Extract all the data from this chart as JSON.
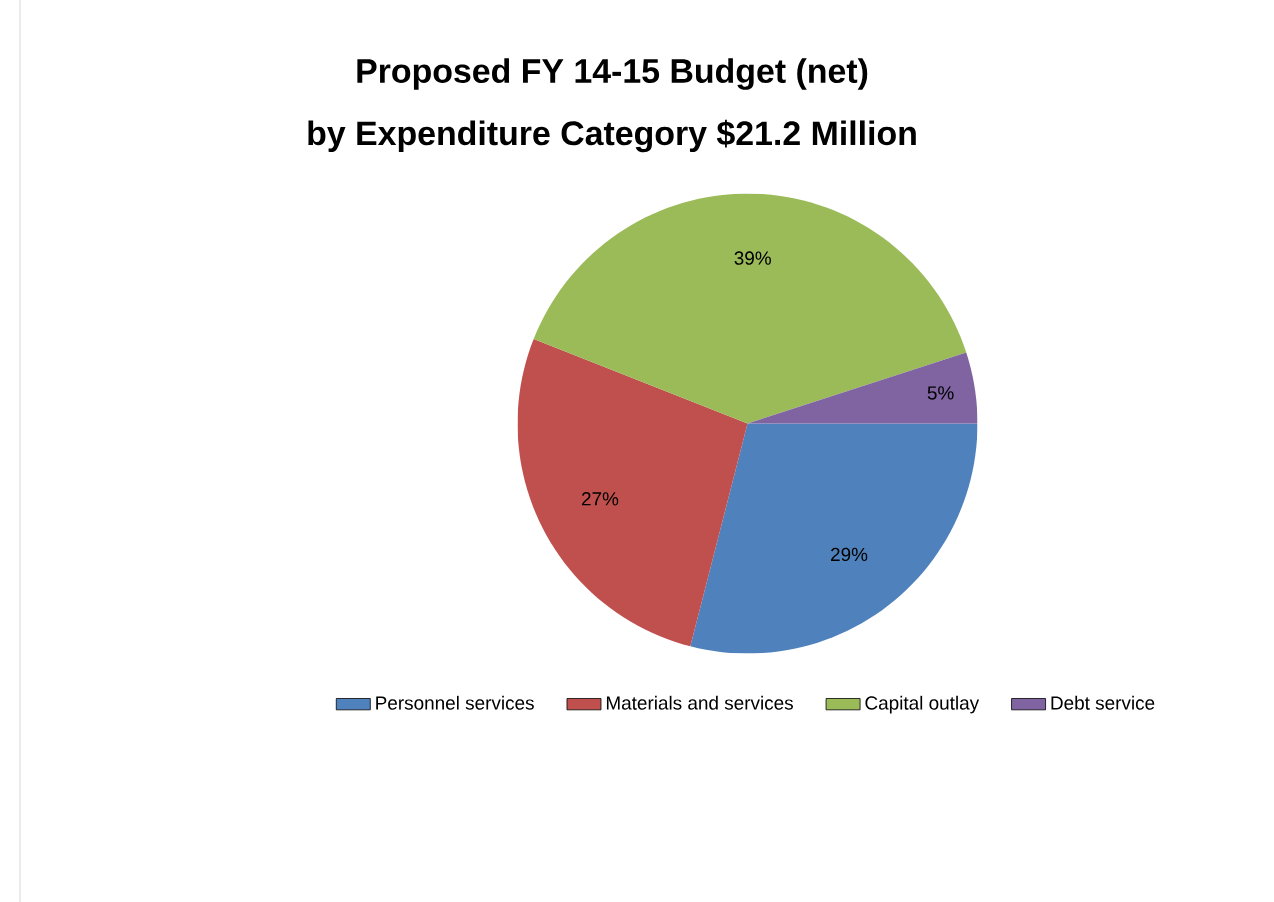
{
  "chart_data": {
    "type": "pie",
    "title": "Proposed FY 14-15 Budget (net)",
    "subtitle": "by Expenditure Category  $21.2 Million",
    "categories": [
      "Personnel services",
      "Materials and services",
      "Capital outlay",
      "Debt service"
    ],
    "values": [
      29,
      27,
      39,
      5
    ],
    "colors": [
      "#4f81bd",
      "#c0504d",
      "#9bbb59",
      "#8064a2"
    ],
    "value_labels": [
      "29%",
      "27%",
      "39%",
      "5%"
    ],
    "legend": "bottom"
  }
}
